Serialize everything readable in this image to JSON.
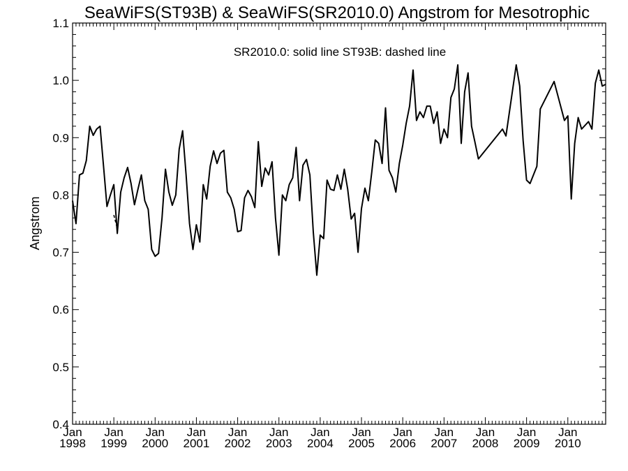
{
  "chart_data": {
    "type": "line",
    "title": "SeaWiFS(ST93B) & SeaWiFS(SR2010.0)  Angstrom for Mesotrophic",
    "annotation": "SR2010.0: solid line   ST93B: dashed line",
    "xlabel": "",
    "ylabel": "Angstrom",
    "ylim": [
      0.4,
      1.1
    ],
    "yticks": [
      "0.4",
      "0.5",
      "0.6",
      "0.7",
      "0.8",
      "0.9",
      "1.0",
      "1.1"
    ],
    "xlim": [
      "1998-01",
      "2010-12"
    ],
    "xticks": [
      {
        "month": "Jan",
        "year": "1998"
      },
      {
        "month": "Jan",
        "year": "1999"
      },
      {
        "month": "Jan",
        "year": "2000"
      },
      {
        "month": "Jan",
        "year": "2001"
      },
      {
        "month": "Jan",
        "year": "2002"
      },
      {
        "month": "Jan",
        "year": "2003"
      },
      {
        "month": "Jan",
        "year": "2004"
      },
      {
        "month": "Jan",
        "year": "2005"
      },
      {
        "month": "Jan",
        "year": "2006"
      },
      {
        "month": "Jan",
        "year": "2007"
      },
      {
        "month": "Jan",
        "year": "2008"
      },
      {
        "month": "Jan",
        "year": "2009"
      },
      {
        "month": "Jan",
        "year": "2010"
      }
    ],
    "grid": false,
    "series": [
      {
        "style": "solid",
        "points": [
          [
            "1998-01",
            0.79
          ],
          [
            "1998-02",
            0.75
          ],
          [
            "1998-03",
            0.835
          ],
          [
            "1998-04",
            0.838
          ],
          [
            "1998-05",
            0.86
          ],
          [
            "1998-06",
            0.92
          ],
          [
            "1998-07",
            0.904
          ],
          [
            "1998-08",
            0.915
          ],
          [
            "1998-09",
            0.92
          ],
          [
            "1998-10",
            0.85
          ],
          [
            "1998-11",
            0.78
          ],
          [
            "1998-12",
            0.8
          ],
          [
            "1999-01",
            0.818
          ],
          [
            "1999-02",
            0.733
          ],
          [
            "1999-03",
            0.805
          ],
          [
            "1999-04",
            0.83
          ],
          [
            "1999-05",
            0.848
          ],
          [
            "1999-06",
            0.82
          ],
          [
            "1999-07",
            0.783
          ],
          [
            "1999-08",
            0.81
          ],
          [
            "1999-09",
            0.835
          ],
          [
            "1999-10",
            0.79
          ],
          [
            "1999-11",
            0.775
          ],
          [
            "1999-12",
            0.705
          ],
          [
            "2000-01",
            0.693
          ],
          [
            "2000-02",
            0.698
          ],
          [
            "2000-03",
            0.76
          ],
          [
            "2000-04",
            0.845
          ],
          [
            "2000-05",
            0.805
          ],
          [
            "2000-06",
            0.782
          ],
          [
            "2000-07",
            0.8
          ],
          [
            "2000-08",
            0.88
          ],
          [
            "2000-09",
            0.912
          ],
          [
            "2000-10",
            0.835
          ],
          [
            "2000-11",
            0.75
          ],
          [
            "2000-12",
            0.705
          ],
          [
            "2001-01",
            0.748
          ],
          [
            "2001-02",
            0.718
          ],
          [
            "2001-03",
            0.818
          ],
          [
            "2001-04",
            0.793
          ],
          [
            "2001-05",
            0.85
          ],
          [
            "2001-06",
            0.877
          ],
          [
            "2001-07",
            0.855
          ],
          [
            "2001-08",
            0.873
          ],
          [
            "2001-09",
            0.878
          ],
          [
            "2001-10",
            0.805
          ],
          [
            "2001-11",
            0.795
          ],
          [
            "2001-12",
            0.775
          ],
          [
            "2002-01",
            0.736
          ],
          [
            "2002-02",
            0.738
          ],
          [
            "2002-03",
            0.795
          ],
          [
            "2002-04",
            0.808
          ],
          [
            "2002-05",
            0.797
          ],
          [
            "2002-06",
            0.778
          ],
          [
            "2002-07",
            0.893
          ],
          [
            "2002-08",
            0.815
          ],
          [
            "2002-09",
            0.847
          ],
          [
            "2002-10",
            0.835
          ],
          [
            "2002-11",
            0.858
          ],
          [
            "2002-12",
            0.76
          ],
          [
            "2003-01",
            0.695
          ],
          [
            "2003-02",
            0.8
          ],
          [
            "2003-03",
            0.79
          ],
          [
            "2003-04",
            0.818
          ],
          [
            "2003-05",
            0.83
          ],
          [
            "2003-06",
            0.883
          ],
          [
            "2003-07",
            0.79
          ],
          [
            "2003-08",
            0.852
          ],
          [
            "2003-09",
            0.862
          ],
          [
            "2003-10",
            0.835
          ],
          [
            "2003-11",
            0.735
          ],
          [
            "2003-12",
            0.66
          ],
          [
            "2004-01",
            0.73
          ],
          [
            "2004-02",
            0.724
          ],
          [
            "2004-03",
            0.826
          ],
          [
            "2004-04",
            0.81
          ],
          [
            "2004-05",
            0.808
          ],
          [
            "2004-06",
            0.835
          ],
          [
            "2004-07",
            0.81
          ],
          [
            "2004-08",
            0.845
          ],
          [
            "2004-09",
            0.81
          ],
          [
            "2004-10",
            0.758
          ],
          [
            "2004-11",
            0.768
          ],
          [
            "2004-12",
            0.7
          ],
          [
            "2005-01",
            0.776
          ],
          [
            "2005-02",
            0.812
          ],
          [
            "2005-03",
            0.79
          ],
          [
            "2005-04",
            0.84
          ],
          [
            "2005-05",
            0.896
          ],
          [
            "2005-06",
            0.89
          ],
          [
            "2005-07",
            0.855
          ],
          [
            "2005-08",
            0.952
          ],
          [
            "2005-09",
            0.843
          ],
          [
            "2005-10",
            0.83
          ],
          [
            "2005-11",
            0.805
          ],
          [
            "2005-12",
            0.855
          ],
          [
            "2006-01",
            0.887
          ],
          [
            "2006-02",
            0.925
          ],
          [
            "2006-03",
            0.955
          ],
          [
            "2006-04",
            1.018
          ],
          [
            "2006-05",
            0.93
          ],
          [
            "2006-06",
            0.945
          ],
          [
            "2006-07",
            0.935
          ],
          [
            "2006-08",
            0.955
          ],
          [
            "2006-09",
            0.955
          ],
          [
            "2006-10",
            0.925
          ],
          [
            "2006-11",
            0.945
          ],
          [
            "2006-12",
            0.89
          ],
          [
            "2007-01",
            0.915
          ],
          [
            "2007-02",
            0.9
          ],
          [
            "2007-03",
            0.97
          ],
          [
            "2007-04",
            0.985
          ],
          [
            "2007-05",
            1.027
          ],
          [
            "2007-06",
            0.89
          ],
          [
            "2007-07",
            0.98
          ],
          [
            "2007-08",
            1.013
          ],
          [
            "2007-09",
            0.92
          ],
          [
            "2007-10",
            0.892
          ],
          [
            "2007-11",
            0.863
          ],
          [
            "2008-06",
            0.915
          ],
          [
            "2008-07",
            0.903
          ],
          [
            "2008-10",
            1.027
          ],
          [
            "2008-11",
            0.99
          ],
          [
            "2008-12",
            0.895
          ],
          [
            "2009-01",
            0.826
          ],
          [
            "2009-02",
            0.82
          ],
          [
            "2009-04",
            0.85
          ],
          [
            "2009-05",
            0.95
          ],
          [
            "2009-09",
            0.998
          ],
          [
            "2009-12",
            0.93
          ],
          [
            "2010-01",
            0.938
          ],
          [
            "2010-02",
            0.793
          ],
          [
            "2010-03",
            0.89
          ],
          [
            "2010-04",
            0.935
          ],
          [
            "2010-05",
            0.915
          ],
          [
            "2010-07",
            0.928
          ],
          [
            "2010-08",
            0.915
          ],
          [
            "2010-09",
            0.995
          ],
          [
            "2010-10",
            1.018
          ],
          [
            "2010-11",
            0.99
          ],
          [
            "2010-12",
            0.993
          ]
        ]
      },
      {
        "style": "dashed",
        "points": [
          [
            "1999-01",
            0.765
          ],
          [
            "1999-02",
            0.742
          ]
        ]
      }
    ]
  }
}
